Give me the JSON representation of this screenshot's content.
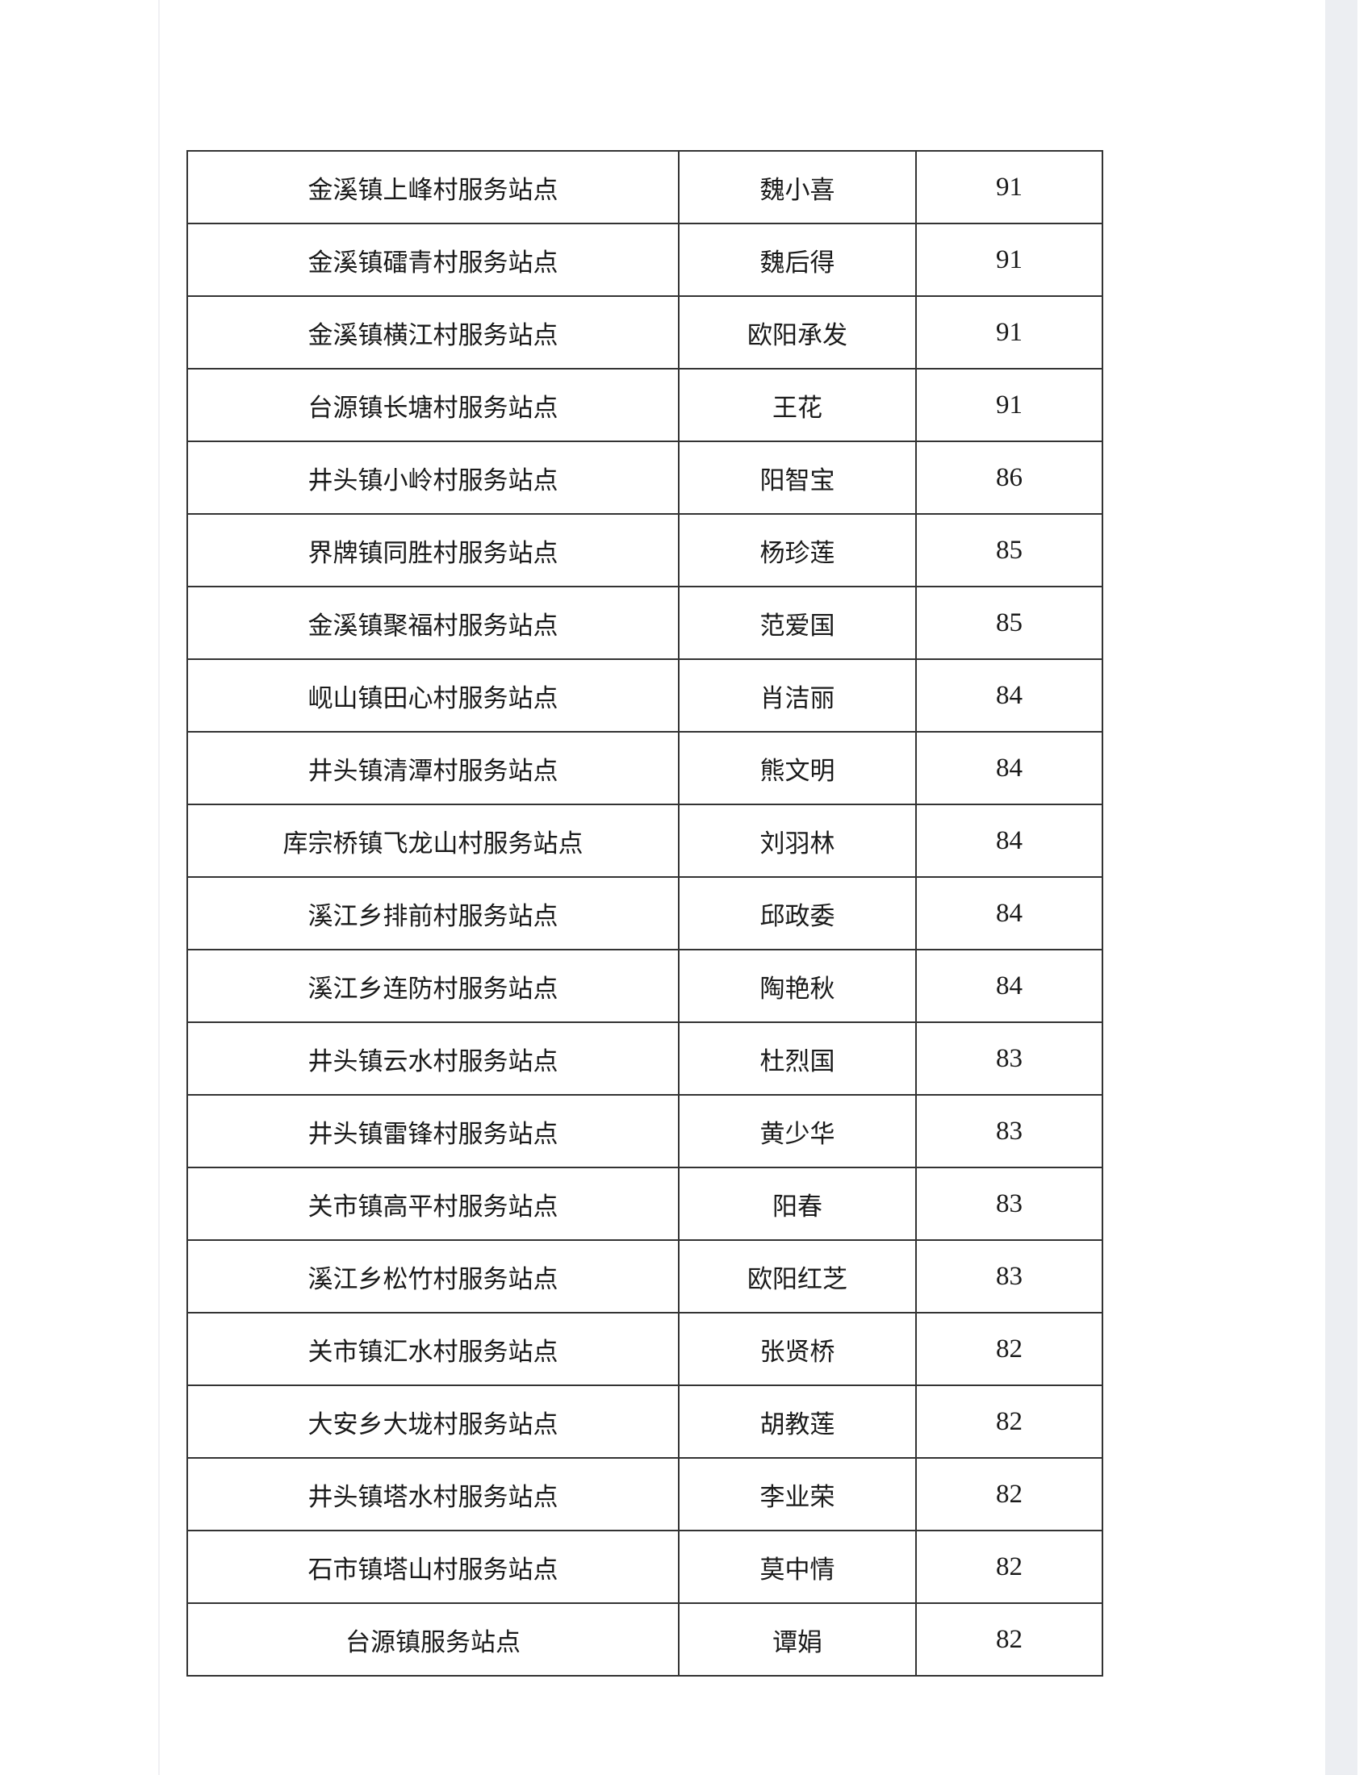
{
  "table": {
    "rows": [
      {
        "station": "金溪镇上峰村服务站点",
        "name": "魏小喜",
        "score": "91"
      },
      {
        "station": "金溪镇礌青村服务站点",
        "name": "魏后得",
        "score": "91"
      },
      {
        "station": "金溪镇横江村服务站点",
        "name": "欧阳承发",
        "score": "91"
      },
      {
        "station": "台源镇长塘村服务站点",
        "name": "王花",
        "score": "91"
      },
      {
        "station": "井头镇小岭村服务站点",
        "name": "阳智宝",
        "score": "86"
      },
      {
        "station": "界牌镇同胜村服务站点",
        "name": "杨珍莲",
        "score": "85"
      },
      {
        "station": "金溪镇聚福村服务站点",
        "name": "范爱国",
        "score": "85"
      },
      {
        "station": "岘山镇田心村服务站点",
        "name": "肖洁丽",
        "score": "84"
      },
      {
        "station": "井头镇清潭村服务站点",
        "name": "熊文明",
        "score": "84"
      },
      {
        "station": "库宗桥镇飞龙山村服务站点",
        "name": "刘羽林",
        "score": "84"
      },
      {
        "station": "溪江乡排前村服务站点",
        "name": "邱政委",
        "score": "84"
      },
      {
        "station": "溪江乡连防村服务站点",
        "name": "陶艳秋",
        "score": "84"
      },
      {
        "station": "井头镇云水村服务站点",
        "name": "杜烈国",
        "score": "83"
      },
      {
        "station": "井头镇雷锋村服务站点",
        "name": "黄少华",
        "score": "83"
      },
      {
        "station": "关市镇高平村服务站点",
        "name": "阳春",
        "score": "83"
      },
      {
        "station": "溪江乡松竹村服务站点",
        "name": "欧阳红芝",
        "score": "83"
      },
      {
        "station": "关市镇汇水村服务站点",
        "name": "张贤桥",
        "score": "82"
      },
      {
        "station": "大安乡大垅村服务站点",
        "name": "胡教莲",
        "score": "82"
      },
      {
        "station": "井头镇塔水村服务站点",
        "name": "李业荣",
        "score": "82"
      },
      {
        "station": "石市镇塔山村服务站点",
        "name": "莫中情",
        "score": "82"
      },
      {
        "station": "台源镇服务站点",
        "name": "谭娟",
        "score": "82"
      }
    ]
  }
}
